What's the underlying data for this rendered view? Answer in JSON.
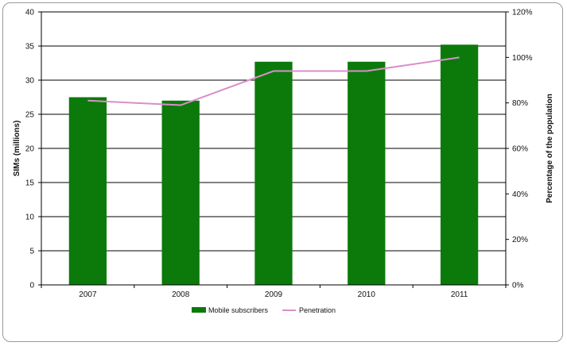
{
  "chart_data": {
    "type": "bar",
    "categories": [
      "2007",
      "2008",
      "2009",
      "2010",
      "2011"
    ],
    "series": [
      {
        "name": "Mobile subscribers",
        "type": "bar",
        "axis": "left",
        "values": [
          27.5,
          27.0,
          32.7,
          32.7,
          35.2
        ]
      },
      {
        "name": "Penetration",
        "type": "line",
        "axis": "right",
        "values": [
          81,
          79,
          94,
          94,
          100
        ]
      }
    ],
    "ylabel": "SIMs (millions)",
    "y2label": "Percentage of the population",
    "ylim": [
      0,
      40
    ],
    "y2lim": [
      0,
      120
    ],
    "yticks": [
      "0",
      "5",
      "10",
      "15",
      "20",
      "25",
      "30",
      "35",
      "40"
    ],
    "y2ticks": [
      "0%",
      "20%",
      "40%",
      "60%",
      "80%",
      "100%",
      "120%"
    ],
    "grid": true,
    "legend": "bottom",
    "colors": {
      "bar": "#0b7a0b",
      "line": "#d98fc8",
      "grid": "#000000"
    }
  }
}
